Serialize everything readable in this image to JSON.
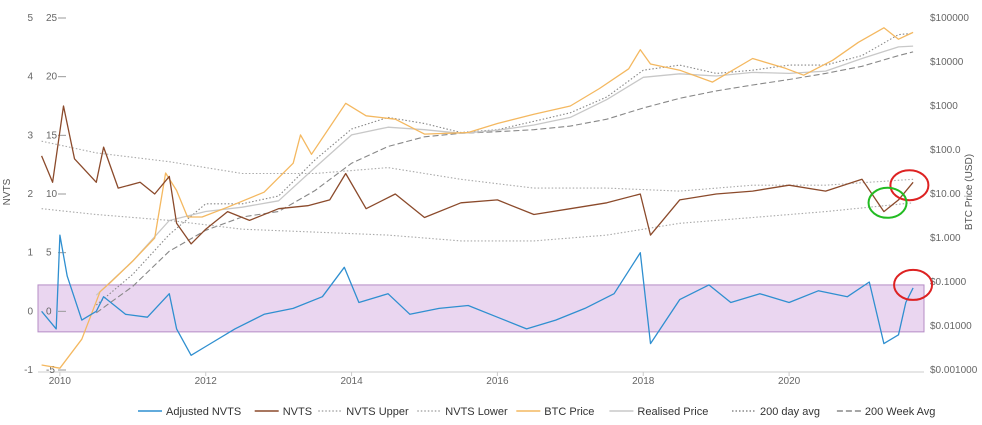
{
  "chart_data": {
    "type": "line",
    "xlabel": "",
    "x_ticks": [
      "2010",
      "2012",
      "2014",
      "2016",
      "2018",
      "2020"
    ],
    "x_range": [
      2009.7,
      2021.85
    ],
    "left_axis": {
      "label": "NVTS",
      "range": [
        -1,
        5
      ],
      "ticks": [
        "5",
        "4",
        "3",
        "2",
        "1",
        "0",
        "-1"
      ]
    },
    "left_axis_inner": {
      "range": [
        -5,
        25
      ],
      "ticks": [
        "25",
        "20",
        "15",
        "10",
        "5",
        "0",
        "-5"
      ]
    },
    "right_axis": {
      "label": "BTC Price (USD)",
      "scale": "log",
      "range": [
        0.001,
        100000
      ],
      "ticks": [
        "$100000",
        "$10000",
        "$1000",
        "$100.0",
        "$10.00",
        "$1.000",
        "$0.1000",
        "$0.01000",
        "$0.001000"
      ]
    },
    "band": {
      "range": [
        -0.35,
        0.45
      ]
    },
    "grid": false,
    "legend_position": "bottom",
    "series": [
      {
        "name": "Adjusted NVTS",
        "color": "#2f8fd0",
        "axis": "left",
        "style": "solid",
        "points": [
          [
            2009.75,
            0.0
          ],
          [
            2009.95,
            -0.3
          ],
          [
            2010.0,
            1.3
          ],
          [
            2010.1,
            0.6
          ],
          [
            2010.3,
            -0.15
          ],
          [
            2010.5,
            0.0
          ],
          [
            2010.6,
            0.25
          ],
          [
            2010.9,
            -0.05
          ],
          [
            2011.2,
            -0.1
          ],
          [
            2011.5,
            0.3
          ],
          [
            2011.6,
            -0.3
          ],
          [
            2011.8,
            -0.75
          ],
          [
            2012.0,
            -0.6
          ],
          [
            2012.4,
            -0.3
          ],
          [
            2012.8,
            -0.05
          ],
          [
            2013.2,
            0.05
          ],
          [
            2013.6,
            0.25
          ],
          [
            2013.9,
            0.75
          ],
          [
            2014.1,
            0.15
          ],
          [
            2014.5,
            0.3
          ],
          [
            2014.8,
            -0.05
          ],
          [
            2015.2,
            0.05
          ],
          [
            2015.6,
            0.1
          ],
          [
            2016.0,
            -0.1
          ],
          [
            2016.4,
            -0.3
          ],
          [
            2016.8,
            -0.15
          ],
          [
            2017.2,
            0.05
          ],
          [
            2017.6,
            0.3
          ],
          [
            2017.96,
            1.0
          ],
          [
            2018.1,
            -0.55
          ],
          [
            2018.5,
            0.2
          ],
          [
            2018.9,
            0.45
          ],
          [
            2019.2,
            0.15
          ],
          [
            2019.6,
            0.3
          ],
          [
            2020.0,
            0.15
          ],
          [
            2020.4,
            0.35
          ],
          [
            2020.8,
            0.25
          ],
          [
            2021.1,
            0.5
          ],
          [
            2021.3,
            -0.55
          ],
          [
            2021.5,
            -0.4
          ],
          [
            2021.6,
            0.15
          ],
          [
            2021.7,
            0.4
          ]
        ]
      },
      {
        "name": "NVTS",
        "color": "#8b4a2b",
        "axis": "left",
        "style": "solid",
        "points": [
          [
            2009.75,
            2.65
          ],
          [
            2009.9,
            2.2
          ],
          [
            2010.05,
            3.5
          ],
          [
            2010.2,
            2.6
          ],
          [
            2010.5,
            2.2
          ],
          [
            2010.6,
            2.8
          ],
          [
            2010.8,
            2.1
          ],
          [
            2011.1,
            2.2
          ],
          [
            2011.3,
            2.0
          ],
          [
            2011.5,
            2.3
          ],
          [
            2011.6,
            1.5
          ],
          [
            2011.8,
            1.15
          ],
          [
            2012.0,
            1.4
          ],
          [
            2012.3,
            1.7
          ],
          [
            2012.6,
            1.55
          ],
          [
            2013.0,
            1.75
          ],
          [
            2013.4,
            1.8
          ],
          [
            2013.7,
            1.9
          ],
          [
            2013.92,
            2.35
          ],
          [
            2014.2,
            1.75
          ],
          [
            2014.6,
            2.0
          ],
          [
            2015.0,
            1.6
          ],
          [
            2015.5,
            1.85
          ],
          [
            2016.0,
            1.9
          ],
          [
            2016.5,
            1.65
          ],
          [
            2017.0,
            1.75
          ],
          [
            2017.5,
            1.85
          ],
          [
            2017.96,
            2.0
          ],
          [
            2018.1,
            1.3
          ],
          [
            2018.5,
            1.9
          ],
          [
            2019.0,
            2.0
          ],
          [
            2019.5,
            2.05
          ],
          [
            2020.0,
            2.15
          ],
          [
            2020.5,
            2.05
          ],
          [
            2021.0,
            2.25
          ],
          [
            2021.3,
            1.7
          ],
          [
            2021.5,
            1.9
          ],
          [
            2021.7,
            2.2
          ]
        ]
      },
      {
        "name": "NVTS Upper",
        "color": "#aaaaaa",
        "axis": "left",
        "style": "dotted",
        "points": [
          [
            2009.75,
            2.9
          ],
          [
            2010.5,
            2.7
          ],
          [
            2011.5,
            2.55
          ],
          [
            2012.5,
            2.35
          ],
          [
            2013.5,
            2.35
          ],
          [
            2014.5,
            2.45
          ],
          [
            2015.5,
            2.25
          ],
          [
            2016.5,
            2.1
          ],
          [
            2017.5,
            2.1
          ],
          [
            2018.5,
            2.05
          ],
          [
            2019.5,
            2.15
          ],
          [
            2020.5,
            2.15
          ],
          [
            2021.7,
            2.25
          ]
        ]
      },
      {
        "name": "NVTS Lower",
        "color": "#aaaaaa",
        "axis": "left",
        "style": "dotted",
        "points": [
          [
            2009.75,
            1.75
          ],
          [
            2010.5,
            1.65
          ],
          [
            2011.5,
            1.55
          ],
          [
            2012.5,
            1.4
          ],
          [
            2013.5,
            1.35
          ],
          [
            2014.5,
            1.3
          ],
          [
            2015.5,
            1.2
          ],
          [
            2016.5,
            1.2
          ],
          [
            2017.5,
            1.3
          ],
          [
            2018.5,
            1.5
          ],
          [
            2019.5,
            1.6
          ],
          [
            2020.5,
            1.7
          ],
          [
            2021.7,
            1.85
          ]
        ]
      },
      {
        "name": "BTC Price",
        "color": "#f4b860",
        "axis": "right",
        "style": "solid",
        "points": [
          [
            2009.75,
            0.0013
          ],
          [
            2010.0,
            0.0011
          ],
          [
            2010.3,
            0.005
          ],
          [
            2010.55,
            0.06
          ],
          [
            2010.7,
            0.1
          ],
          [
            2011.0,
            0.3
          ],
          [
            2011.3,
            1.0
          ],
          [
            2011.45,
            30
          ],
          [
            2011.6,
            12
          ],
          [
            2011.75,
            3
          ],
          [
            2011.95,
            3
          ],
          [
            2012.3,
            5
          ],
          [
            2012.8,
            11
          ],
          [
            2013.2,
            50
          ],
          [
            2013.3,
            220
          ],
          [
            2013.45,
            80
          ],
          [
            2013.92,
            1150
          ],
          [
            2014.2,
            600
          ],
          [
            2014.6,
            500
          ],
          [
            2015.0,
            230
          ],
          [
            2015.6,
            250
          ],
          [
            2016.0,
            400
          ],
          [
            2016.5,
            650
          ],
          [
            2017.0,
            1000
          ],
          [
            2017.4,
            2500
          ],
          [
            2017.8,
            7000
          ],
          [
            2017.96,
            19000
          ],
          [
            2018.1,
            9000
          ],
          [
            2018.5,
            6500
          ],
          [
            2018.95,
            3500
          ],
          [
            2019.5,
            12000
          ],
          [
            2019.95,
            7200
          ],
          [
            2020.2,
            5000
          ],
          [
            2020.6,
            11000
          ],
          [
            2020.95,
            28000
          ],
          [
            2021.3,
            60000
          ],
          [
            2021.5,
            33000
          ],
          [
            2021.7,
            47000
          ]
        ]
      },
      {
        "name": "Realised Price",
        "color": "#c8c8c8",
        "axis": "right",
        "style": "solid",
        "points": [
          [
            2010.5,
            0.05
          ],
          [
            2011.0,
            0.3
          ],
          [
            2011.5,
            2.5
          ],
          [
            2012.0,
            4
          ],
          [
            2012.5,
            5
          ],
          [
            2013.0,
            7
          ],
          [
            2013.5,
            40
          ],
          [
            2014.0,
            220
          ],
          [
            2014.5,
            330
          ],
          [
            2015.0,
            290
          ],
          [
            2015.5,
            240
          ],
          [
            2016.0,
            280
          ],
          [
            2016.5,
            370
          ],
          [
            2017.0,
            550
          ],
          [
            2017.5,
            1400
          ],
          [
            2018.0,
            4500
          ],
          [
            2018.5,
            5400
          ],
          [
            2019.0,
            4800
          ],
          [
            2019.5,
            5800
          ],
          [
            2020.0,
            5500
          ],
          [
            2020.5,
            6200
          ],
          [
            2021.0,
            12000
          ],
          [
            2021.5,
            22000
          ],
          [
            2021.7,
            23000
          ]
        ]
      },
      {
        "name": "200 day avg",
        "color": "#888888",
        "axis": "right",
        "style": "dotted",
        "points": [
          [
            2010.5,
            0.03
          ],
          [
            2011.0,
            0.15
          ],
          [
            2011.5,
            1.2
          ],
          [
            2012.0,
            6
          ],
          [
            2012.5,
            6
          ],
          [
            2013.0,
            9
          ],
          [
            2013.5,
            60
          ],
          [
            2014.0,
            300
          ],
          [
            2014.5,
            550
          ],
          [
            2015.0,
            400
          ],
          [
            2015.5,
            250
          ],
          [
            2016.0,
            290
          ],
          [
            2016.5,
            450
          ],
          [
            2017.0,
            700
          ],
          [
            2017.5,
            1600
          ],
          [
            2018.0,
            6500
          ],
          [
            2018.5,
            8500
          ],
          [
            2019.0,
            5500
          ],
          [
            2019.5,
            6500
          ],
          [
            2020.0,
            8500
          ],
          [
            2020.5,
            8500
          ],
          [
            2021.0,
            14000
          ],
          [
            2021.5,
            42000
          ],
          [
            2021.7,
            45000
          ]
        ]
      },
      {
        "name": "200 Week Avg",
        "color": "#888888",
        "axis": "right",
        "style": "dashed",
        "points": [
          [
            2010.5,
            0.02
          ],
          [
            2011.0,
            0.08
          ],
          [
            2011.5,
            0.5
          ],
          [
            2012.0,
            1.5
          ],
          [
            2012.5,
            3
          ],
          [
            2013.0,
            4
          ],
          [
            2013.5,
            12
          ],
          [
            2014.0,
            50
          ],
          [
            2014.5,
            120
          ],
          [
            2015.0,
            200
          ],
          [
            2015.5,
            240
          ],
          [
            2016.0,
            260
          ],
          [
            2016.5,
            290
          ],
          [
            2017.0,
            350
          ],
          [
            2017.5,
            500
          ],
          [
            2018.0,
            900
          ],
          [
            2018.5,
            1500
          ],
          [
            2019.0,
            2200
          ],
          [
            2019.5,
            3000
          ],
          [
            2020.0,
            4000
          ],
          [
            2020.5,
            5500
          ],
          [
            2021.0,
            8000
          ],
          [
            2021.5,
            14000
          ],
          [
            2021.7,
            17000
          ]
        ]
      }
    ],
    "annotations": [
      {
        "shape": "circle",
        "color": "#dd2222",
        "x": 2021.65,
        "y_axis": "left",
        "y": 2.15
      },
      {
        "shape": "circle",
        "color": "#22bb22",
        "x": 2021.35,
        "y_axis": "left",
        "y": 1.85
      },
      {
        "shape": "circle",
        "color": "#dd2222",
        "x": 2021.7,
        "y_axis": "left",
        "y": 0.45
      }
    ]
  }
}
